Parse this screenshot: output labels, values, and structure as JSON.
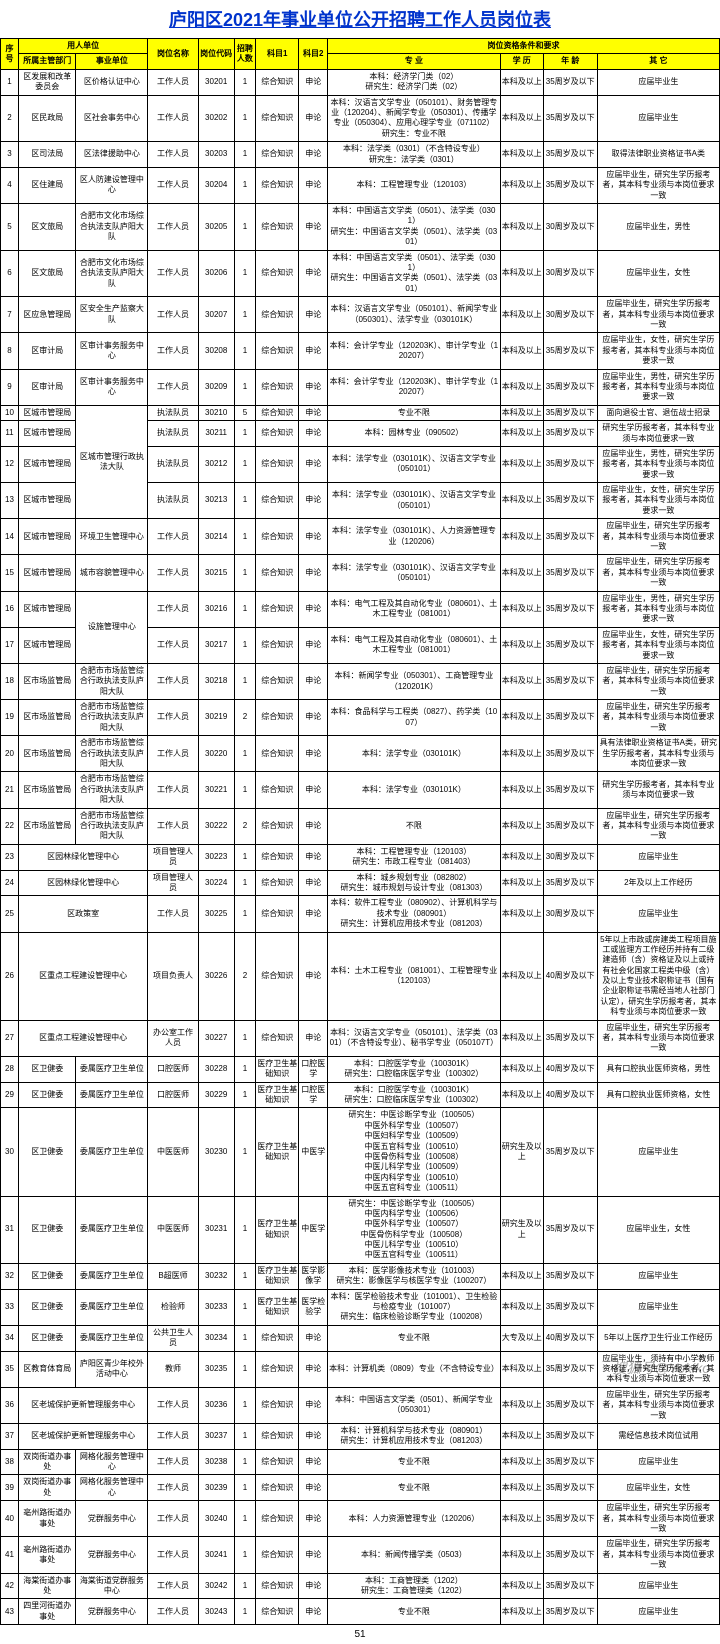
{
  "title": "庐阳区2021年事业单位公开招聘工作人员岗位表",
  "page_num": "51",
  "watermark": "搜狐号@Yokiko",
  "headers": {
    "seq": "序号",
    "employer": "用人单位",
    "dept": "所属主管部门",
    "unit": "事业单位",
    "post": "岗位名称",
    "code": "岗位代码",
    "num": "招聘人数",
    "s1": "科目1",
    "s2": "科目2",
    "qual": "岗位资格条件和要求",
    "major": "专 业",
    "edu": "学 历",
    "age": "年 龄",
    "other": "其 它"
  },
  "rows": [
    {
      "n": "1",
      "d": "区发展和改革委员会",
      "u": "区价格认证中心",
      "p": "工作人员",
      "c": "30201",
      "m": "1",
      "s1": "综合知识",
      "s2": "申论",
      "maj": "本科：经济学门类（02）\n研究生：经济学门类（02）",
      "e": "本科及以上",
      "a": "35周岁及以下",
      "o": "应届毕业生"
    },
    {
      "n": "2",
      "d": "区民政局",
      "u": "区社会事务中心",
      "p": "工作人员",
      "c": "30202",
      "m": "1",
      "s1": "综合知识",
      "s2": "申论",
      "maj": "本科：汉语言文学专业（050101）、财务管理专业（120204）、新闻学专业（050301）、传播学专业（050304）、应用心理学专业（071102）\n研究生：专业不限",
      "e": "本科及以上",
      "a": "35周岁及以下",
      "o": "应届毕业生"
    },
    {
      "n": "3",
      "d": "区司法局",
      "u": "区法律援助中心",
      "p": "工作人员",
      "c": "30203",
      "m": "1",
      "s1": "综合知识",
      "s2": "申论",
      "maj": "本科：法学类（0301）（不含特设专业）\n研究生：法学类（0301）",
      "e": "本科及以上",
      "a": "35周岁及以下",
      "o": "取得法律职业资格证书A类"
    },
    {
      "n": "4",
      "d": "区住建局",
      "u": "区人防建设管理中心",
      "p": "工作人员",
      "c": "30204",
      "m": "1",
      "s1": "综合知识",
      "s2": "申论",
      "maj": "本科：工程管理专业（120103）",
      "e": "本科及以上",
      "a": "35周岁及以下",
      "o": "应届毕业生，研究生学历报考者，其本科专业须与本岗位要求一致"
    },
    {
      "n": "5",
      "d": "区文旅局",
      "u": "合肥市文化市场综合执法支队庐阳大队",
      "p": "工作人员",
      "c": "30205",
      "m": "1",
      "s1": "综合知识",
      "s2": "申论",
      "maj": "本科：中国语言文学类（0501）、法学类（0301）\n研究生：中国语言文学类（0501）、法学类（0301）",
      "e": "本科及以上",
      "a": "30周岁及以下",
      "o": "应届毕业生，男性"
    },
    {
      "n": "6",
      "d": "区文旅局",
      "u": "合肥市文化市场综合执法支队庐阳大队",
      "p": "工作人员",
      "c": "30206",
      "m": "1",
      "s1": "综合知识",
      "s2": "申论",
      "maj": "本科：中国语言文学类（0501）、法学类（0301）\n研究生：中国语言文学类（0501）、法学类（0301）",
      "e": "本科及以上",
      "a": "30周岁及以下",
      "o": "应届毕业生，女性"
    },
    {
      "n": "7",
      "d": "区应急管理局",
      "u": "区安全生产监察大队",
      "p": "工作人员",
      "c": "30207",
      "m": "1",
      "s1": "综合知识",
      "s2": "申论",
      "maj": "本科：汉语言文学专业（050101）、新闻学专业（050301）、法学专业（030101K）",
      "e": "本科及以上",
      "a": "30周岁及以下",
      "o": "应届毕业生，研究生学历报考者，其本科专业须与本岗位要求一致"
    },
    {
      "n": "8",
      "d": "区审计局",
      "u": "区审计事务服务中心",
      "p": "工作人员",
      "c": "30208",
      "m": "1",
      "s1": "综合知识",
      "s2": "申论",
      "maj": "本科：会计学专业（120203K）、审计学专业（120207）",
      "e": "本科及以上",
      "a": "35周岁及以下",
      "o": "应届毕业生，女性，研究生学历报考者，其本科专业须与本岗位要求一致"
    },
    {
      "n": "9",
      "d": "区审计局",
      "u": "区审计事务服务中心",
      "p": "工作人员",
      "c": "30209",
      "m": "1",
      "s1": "综合知识",
      "s2": "申论",
      "maj": "本科：会计学专业（120203K）、审计学专业（120207）",
      "e": "本科及以上",
      "a": "35周岁及以下",
      "o": "应届毕业生，男性，研究生学历报考者，其本科专业须与本岗位要求一致"
    },
    {
      "n": "10",
      "d": "区城市管理局",
      "u": "区城市管理行政执法大队",
      "ur": 4,
      "p": "执法队员",
      "c": "30210",
      "m": "5",
      "s1": "综合知识",
      "s2": "申论",
      "maj": "专业不限",
      "e": "本科及以上",
      "a": "35周岁及以下",
      "o": "面向退役士官、退伍战士招录"
    },
    {
      "n": "11",
      "d": "区城市管理局",
      "u": "",
      "p": "执法队员",
      "c": "30211",
      "m": "1",
      "s1": "综合知识",
      "s2": "申论",
      "maj": "本科：园林专业（090502）",
      "e": "本科及以上",
      "a": "35周岁及以下",
      "o": "研究生学历报考者，其本科专业须与本岗位要求一致"
    },
    {
      "n": "12",
      "d": "区城市管理局",
      "u": "",
      "p": "执法队员",
      "c": "30212",
      "m": "1",
      "s1": "综合知识",
      "s2": "申论",
      "maj": "本科：法学专业（030101K）、汉语言文学专业（050101）",
      "e": "本科及以上",
      "a": "35周岁及以下",
      "o": "应届毕业生，男性，研究生学历报考者，其本科专业须与本岗位要求一致"
    },
    {
      "n": "13",
      "d": "区城市管理局",
      "u": "",
      "p": "执法队员",
      "c": "30213",
      "m": "1",
      "s1": "综合知识",
      "s2": "申论",
      "maj": "本科：法学专业（030101K）、汉语言文学专业（050101）",
      "e": "本科及以上",
      "a": "35周岁及以下",
      "o": "应届毕业生，女性，研究生学历报考者，其本科专业须与本岗位要求一致"
    },
    {
      "n": "14",
      "d": "区城市管理局",
      "u": "环境卫生管理中心",
      "p": "工作人员",
      "c": "30214",
      "m": "1",
      "s1": "综合知识",
      "s2": "申论",
      "maj": "本科：法学专业（030101K）、人力资源管理专业（120206）",
      "e": "本科及以上",
      "a": "35周岁及以下",
      "o": "应届毕业生，研究生学历报考者，其本科专业须与本岗位要求一致"
    },
    {
      "n": "15",
      "d": "区城市管理局",
      "u": "城市容貌管理中心",
      "p": "工作人员",
      "c": "30215",
      "m": "1",
      "s1": "综合知识",
      "s2": "申论",
      "maj": "本科：法学专业（030101K）、汉语言文学专业（050101）",
      "e": "本科及以上",
      "a": "35周岁及以下",
      "o": "应届毕业生，研究生学历报考者，其本科专业须与本岗位要求一致"
    },
    {
      "n": "16",
      "d": "区城市管理局",
      "u": "设施管理中心",
      "ur": 2,
      "p": "工作人员",
      "c": "30216",
      "m": "1",
      "s1": "综合知识",
      "s2": "申论",
      "maj": "本科：电气工程及其自动化专业（080601）、土木工程专业（081001）",
      "e": "本科及以上",
      "a": "35周岁及以下",
      "o": "应届毕业生，男性，研究生学历报考者，其本科专业须与本岗位要求一致"
    },
    {
      "n": "17",
      "d": "区城市管理局",
      "u": "",
      "p": "工作人员",
      "c": "30217",
      "m": "1",
      "s1": "综合知识",
      "s2": "申论",
      "maj": "本科：电气工程及其自动化专业（080601）、土木工程专业（081001）",
      "e": "本科及以上",
      "a": "35周岁及以下",
      "o": "应届毕业生，女性，研究生学历报考者，其本科专业须与本岗位要求一致"
    },
    {
      "n": "18",
      "d": "区市场监管局",
      "u": "合肥市市场监管综合行政执法支队庐阳大队",
      "p": "工作人员",
      "c": "30218",
      "m": "1",
      "s1": "综合知识",
      "s2": "申论",
      "maj": "本科：新闻学专业（050301）、工商管理专业（120201K）",
      "e": "本科及以上",
      "a": "35周岁及以下",
      "o": "应届毕业生，研究生学历报考者，其本科专业须与本岗位要求一致"
    },
    {
      "n": "19",
      "d": "区市场监管局",
      "u": "合肥市市场监管综合行政执法支队庐阳大队",
      "p": "工作人员",
      "c": "30219",
      "m": "2",
      "s1": "综合知识",
      "s2": "申论",
      "maj": "本科：食品科学与工程类（0827）、药学类（1007）",
      "e": "本科及以上",
      "a": "35周岁及以下",
      "o": "应届毕业生，研究生学历报考者，其本科专业须与本岗位要求一致"
    },
    {
      "n": "20",
      "d": "区市场监管局",
      "u": "合肥市市场监管综合行政执法支队庐阳大队",
      "p": "工作人员",
      "c": "30220",
      "m": "1",
      "s1": "综合知识",
      "s2": "申论",
      "maj": "本科：法学专业（030101K）",
      "e": "本科及以上",
      "a": "35周岁及以下",
      "o": "具有法律职业资格证书A类，研究生学历报考者，其本科专业须与本岗位要求一致"
    },
    {
      "n": "21",
      "d": "区市场监管局",
      "u": "合肥市市场监管综合行政执法支队庐阳大队",
      "p": "工作人员",
      "c": "30221",
      "m": "1",
      "s1": "综合知识",
      "s2": "申论",
      "maj": "本科：法学专业（030101K）",
      "e": "本科及以上",
      "a": "35周岁及以下",
      "o": "研究生学历报考者，其本科专业须与本岗位要求一致"
    },
    {
      "n": "22",
      "d": "区市场监管局",
      "u": "合肥市市场监管综合行政执法支队庐阳大队",
      "p": "工作人员",
      "c": "30222",
      "m": "2",
      "s1": "综合知识",
      "s2": "申论",
      "maj": "不限",
      "e": "本科及以上",
      "a": "35周岁及以下",
      "o": "应届毕业生，研究生学历报考者，其本科专业须与本岗位要求一致"
    },
    {
      "n": "23",
      "d": "区园林绿化管理中心",
      "u": "",
      "uc": 2,
      "p": "项目管理人员",
      "c": "30223",
      "m": "1",
      "s1": "综合知识",
      "s2": "申论",
      "maj": "本科：工程管理专业（120103）\n研究生：市政工程专业（081403）",
      "e": "本科及以上",
      "a": "30周岁及以下",
      "o": "应届毕业生"
    },
    {
      "n": "24",
      "d": "区园林绿化管理中心",
      "u": "",
      "uc": 2,
      "p": "项目管理人员",
      "c": "30224",
      "m": "1",
      "s1": "综合知识",
      "s2": "申论",
      "maj": "本科：城乡规划专业（082802）\n研究生：城市规划与设计专业（081303）",
      "e": "本科及以上",
      "a": "35周岁及以下",
      "o": "2年及以上工作经历"
    },
    {
      "n": "25",
      "d": "区政策室",
      "u": "",
      "uc": 2,
      "p": "工作人员",
      "c": "30225",
      "m": "1",
      "s1": "综合知识",
      "s2": "申论",
      "maj": "本科：软件工程专业（080902）、计算机科学与技术专业（080901）\n研究生：计算机应用技术专业（081203）",
      "e": "本科及以上",
      "a": "30周岁及以下",
      "o": "应届毕业生"
    },
    {
      "n": "26",
      "d": "区重点工程建设管理中心",
      "u": "",
      "uc": 2,
      "p": "项目负责人",
      "c": "30226",
      "m": "2",
      "s1": "综合知识",
      "s2": "申论",
      "maj": "本科：土木工程专业（081001）、工程管理专业（120103）",
      "e": "本科及以上",
      "a": "40周岁及以下",
      "o": "5年以上市政或房建类工程项目施工或监理方工作经历并持有二级建造师（含）资格证及以上或持有社会化国家工程类中级（含）及以上专业技术职称证书（国有企业职称证书需经当地人社部门认定），研究生学历报考者，其本科专业须与本岗位要求一致"
    },
    {
      "n": "27",
      "d": "区重点工程建设管理中心",
      "u": "",
      "uc": 2,
      "p": "办公室工作人员",
      "c": "30227",
      "m": "1",
      "s1": "综合知识",
      "s2": "申论",
      "maj": "本科：汉语言文学专业（050101）、法学类（0301）（不含特设专业）、秘书学专业（050107T）",
      "e": "本科及以上",
      "a": "35周岁及以下",
      "o": "应届毕业生，研究生学历报考者，其本科专业须与本岗位要求一致"
    },
    {
      "n": "28",
      "d": "区卫健委",
      "u": "委属医疗卫生单位",
      "p": "口腔医师",
      "c": "30228",
      "m": "1",
      "s1": "医疗卫生基础知识",
      "s2": "口腔医学",
      "maj": "本科：口腔医学专业（100301K）\n研究生：口腔临床医学专业（100302）",
      "e": "本科及以上",
      "a": "40周岁及以下",
      "o": "具有口腔执业医师资格，男性"
    },
    {
      "n": "29",
      "d": "区卫健委",
      "u": "委属医疗卫生单位",
      "p": "口腔医师",
      "c": "30229",
      "m": "1",
      "s1": "医疗卫生基础知识",
      "s2": "口腔医学",
      "maj": "本科：口腔医学专业（100301K）\n研究生：口腔临床医学专业（100302）",
      "e": "本科及以上",
      "a": "40周岁及以下",
      "o": "具有口腔执业医师资格，女性"
    },
    {
      "n": "30",
      "d": "区卫健委",
      "u": "委属医疗卫生单位",
      "p": "中医医师",
      "c": "30230",
      "m": "1",
      "s1": "医疗卫生基础知识",
      "s2": "中医学",
      "maj": "研究生：中医诊断学专业（100505）\n中医外科学专业（100507）\n中医妇科学专业（100509）\n中医五官科专业（100510）\n中医骨伤科专业（100508）\n中医儿科学专业（100509）\n中医内科学专业（100510）\n中医五官科专业（100511）",
      "e": "研究生及以上",
      "a": "35周岁及以下",
      "o": "应届毕业生"
    },
    {
      "n": "31",
      "d": "区卫健委",
      "u": "委属医疗卫生单位",
      "p": "中医医师",
      "c": "30231",
      "m": "1",
      "s1": "医疗卫生基础知识",
      "s2": "中医学",
      "maj": "研究生：中医诊断学专业（100505）\n中医内科学专业（100506）\n中医外科学专业（100507）\n中医骨伤科学专业（100508）\n中医儿科学专业（100510）\n中医五官科专业（100511）",
      "e": "研究生及以上",
      "a": "35周岁及以下",
      "o": "应届毕业生，女性"
    },
    {
      "n": "32",
      "d": "区卫健委",
      "u": "委属医疗卫生单位",
      "p": "B超医师",
      "c": "30232",
      "m": "1",
      "s1": "医疗卫生基础知识",
      "s2": "医学影像学",
      "maj": "本科：医学影像技术专业（101003）\n研究生：影像医学与核医学专业（100207）",
      "e": "本科及以上",
      "a": "35周岁及以下",
      "o": "应届毕业生"
    },
    {
      "n": "33",
      "d": "区卫健委",
      "u": "委属医疗卫生单位",
      "p": "检验师",
      "c": "30233",
      "m": "1",
      "s1": "医疗卫生基础知识",
      "s2": "医学检验学",
      "maj": "本科：医学检验技术专业（101001）、卫生检验与检疫专业（101007）\n研究生：临床检验诊断学专业（100208）",
      "e": "本科及以上",
      "a": "35周岁及以下",
      "o": "应届毕业生"
    },
    {
      "n": "34",
      "d": "区卫健委",
      "u": "委属医疗卫生单位",
      "p": "公共卫生人员",
      "c": "30234",
      "m": "1",
      "s1": "综合知识",
      "s2": "申论",
      "maj": "专业不限",
      "e": "大专及以上",
      "a": "40周岁及以下",
      "o": "5年以上医疗卫生行业工作经历"
    },
    {
      "n": "35",
      "d": "区教育体育局",
      "u": "庐阳区青少年校外活动中心",
      "p": "教师",
      "c": "30235",
      "m": "1",
      "s1": "综合知识",
      "s2": "申论",
      "maj": "本科：计算机类（0809）专业（不含特设专业）",
      "e": "本科及以上",
      "a": "35周岁及以下",
      "o": "应届毕业生，须持有中小学教师资格证，研究生学历报考者，其本科专业须与本岗位要求一致"
    },
    {
      "n": "36",
      "d": "区老城保护更新管理服务中心",
      "u": "",
      "uc": 2,
      "p": "工作人员",
      "c": "30236",
      "m": "1",
      "s1": "综合知识",
      "s2": "申论",
      "maj": "本科：中国语言文学类（0501）、新闻学专业（050301）",
      "e": "本科及以上",
      "a": "35周岁及以下",
      "o": "应届毕业生，研究生学历报考者，其本科专业须与本岗位要求一致"
    },
    {
      "n": "37",
      "d": "区老城保护更新管理服务中心",
      "u": "",
      "uc": 2,
      "p": "工作人员",
      "c": "30237",
      "m": "1",
      "s1": "综合知识",
      "s2": "申论",
      "maj": "本科：计算机科学与技术专业（080901）\n研究生：计算机应用技术专业（081203）",
      "e": "本科及以上",
      "a": "35周岁及以下",
      "o": "需经信息技术岗位试用"
    },
    {
      "n": "38",
      "d": "双岗街道办事处",
      "u": "网格化服务管理中心",
      "p": "工作人员",
      "c": "30238",
      "m": "1",
      "s1": "综合知识",
      "s2": "申论",
      "maj": "专业不限",
      "e": "本科及以上",
      "a": "35周岁及以下",
      "o": "应届毕业生"
    },
    {
      "n": "39",
      "d": "双岗街道办事处",
      "u": "网格化服务管理中心",
      "p": "工作人员",
      "c": "30239",
      "m": "1",
      "s1": "综合知识",
      "s2": "申论",
      "maj": "专业不限",
      "e": "本科及以上",
      "a": "35周岁及以下",
      "o": "应届毕业生，女性"
    },
    {
      "n": "40",
      "d": "亳州路街道办事处",
      "u": "党群服务中心",
      "p": "工作人员",
      "c": "30240",
      "m": "1",
      "s1": "综合知识",
      "s2": "申论",
      "maj": "本科：人力资源管理专业（120206）",
      "e": "本科及以上",
      "a": "35周岁及以下",
      "o": "应届毕业生，研究生学历报考者，其本科专业须与本岗位要求一致"
    },
    {
      "n": "41",
      "d": "亳州路街道办事处",
      "u": "党群服务中心",
      "p": "工作人员",
      "c": "30241",
      "m": "1",
      "s1": "综合知识",
      "s2": "申论",
      "maj": "本科：新闻传播学类（0503）",
      "e": "本科及以上",
      "a": "35周岁及以下",
      "o": "应届毕业生，研究生学历报考者，其本科专业须与本岗位要求一致"
    },
    {
      "n": "42",
      "d": "海棠街道办事处",
      "u": "海棠街道党群服务中心",
      "p": "工作人员",
      "c": "30242",
      "m": "1",
      "s1": "综合知识",
      "s2": "申论",
      "maj": "本科：工商管理类（1202）\n研究生：工商管理类（1202）",
      "e": "本科及以上",
      "a": "35周岁及以下",
      "o": "应届毕业生"
    },
    {
      "n": "43",
      "d": "四里河街道办事处",
      "u": "党群服务中心",
      "p": "工作人员",
      "c": "30243",
      "m": "1",
      "s1": "综合知识",
      "s2": "申论",
      "maj": "专业不限",
      "e": "本科及以上",
      "a": "35周岁及以下",
      "o": "应届毕业生"
    }
  ]
}
